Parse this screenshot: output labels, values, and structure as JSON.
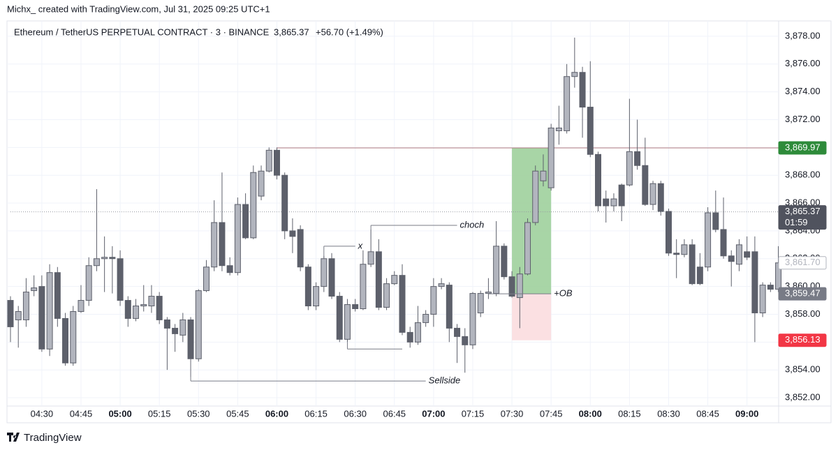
{
  "header": {
    "credit": "Michx_ created with TradingView.com, Jul 31, 2025 09:25 UTC+1"
  },
  "footer": {
    "brand": "TradingView"
  },
  "chart_data": {
    "type": "candlestick",
    "symbol": "Ethereum / TetherUS PERPETUAL CONTRACT · 3 · BINANCE",
    "last_price": "3,865.37",
    "change": "+56.70 (+1.49%)",
    "up_color": "#b2b5be",
    "down_color": "#5d606b",
    "wick_color": "#5d606b",
    "grid": true,
    "categories": [
      "04:18",
      "04:21",
      "04:24",
      "04:27",
      "04:30",
      "04:33",
      "04:36",
      "04:39",
      "04:42",
      "04:45",
      "04:48",
      "04:51",
      "04:54",
      "04:57",
      "05:00",
      "05:03",
      "05:06",
      "05:09",
      "05:12",
      "05:15",
      "05:18",
      "05:21",
      "05:24",
      "05:27",
      "05:30",
      "05:33",
      "05:36",
      "05:39",
      "05:42",
      "05:45",
      "05:48",
      "05:51",
      "05:54",
      "05:57",
      "06:00",
      "06:03",
      "06:06",
      "06:09",
      "06:12",
      "06:15",
      "06:18",
      "06:21",
      "06:24",
      "06:27",
      "06:30",
      "06:33",
      "06:36",
      "06:39",
      "06:42",
      "06:45",
      "06:48",
      "06:51",
      "06:54",
      "06:57",
      "07:00",
      "07:03",
      "07:06",
      "07:09",
      "07:12",
      "07:15",
      "07:18",
      "07:21",
      "07:24",
      "07:27",
      "07:30",
      "07:33",
      "07:36",
      "07:39",
      "07:42",
      "07:45",
      "07:48",
      "07:51",
      "07:54",
      "07:57",
      "08:00",
      "08:03",
      "08:06",
      "08:09",
      "08:12",
      "08:15",
      "08:18",
      "08:21",
      "08:24",
      "08:27",
      "08:30",
      "08:33",
      "08:36",
      "08:39",
      "08:42",
      "08:45",
      "08:48",
      "08:51",
      "08:54",
      "08:57",
      "09:00",
      "09:03",
      "09:06",
      "09:09",
      "09:12"
    ],
    "open": [
      3859.0,
      3857.6,
      3857.6,
      3859.7,
      3860.0,
      3855.5,
      3861.0,
      3857.7,
      3854.5,
      3858.2,
      3859.0,
      3861.5,
      3862.0,
      3862.1,
      3862.0,
      3859.0,
      3857.7,
      3858.6,
      3858.6,
      3859.3,
      3857.6,
      3857.0,
      3856.5,
      3857.6,
      3854.8,
      3859.7,
      3861.4,
      3864.6,
      3861.5,
      3861.0,
      3865.9,
      3863.5,
      3866.5,
      3868.3,
      3869.8,
      3868.0,
      3864.0,
      3864.1,
      3861.4,
      3858.6,
      3860.0,
      3862.0,
      3859.3,
      3856.2,
      3858.7,
      3858.4,
      3861.6,
      3862.5,
      3858.5,
      3860.2,
      3860.8,
      3856.7,
      3856.0,
      3857.4,
      3858.0,
      3860.0,
      3860.1,
      3857.0,
      3856.4,
      3855.8,
      3858.1,
      3859.5,
      3859.5,
      3862.9,
      3860.7,
      3859.2,
      3860.9,
      3864.6,
      3867.6,
      3867.1,
      3871.2,
      3871.2,
      3875.1,
      3875.4,
      3872.9,
      3869.5,
      3866.3,
      3865.8,
      3867.3,
      3867.3,
      3869.7,
      3868.7,
      3865.9,
      3867.4,
      3865.4,
      3862.4,
      3862.3,
      3863.0,
      3861.4,
      3861.4,
      3865.3,
      3864.1,
      3862.2,
      3861.6,
      3862.5,
      3862.5,
      3858.1,
      3860.1,
      3859.8
    ],
    "high": [
      3859.3,
      3858.6,
      3860.6,
      3860.8,
      3860.8,
      3861.6,
      3861.4,
      3858.1,
      3858.6,
      3860.1,
      3862.1,
      3867.0,
      3863.6,
      3862.9,
      3862.6,
      3859.3,
      3859.1,
      3860.1,
      3860.1,
      3859.6,
      3857.8,
      3857.3,
      3858.1,
      3857.8,
      3859.8,
      3861.9,
      3866.2,
      3868.2,
      3862.1,
      3866.4,
      3866.7,
      3868.7,
      3868.7,
      3870.0,
      3870.0,
      3868.2,
      3864.9,
      3864.4,
      3861.6,
      3860.3,
      3862.2,
      3862.4,
      3859.6,
      3859.1,
      3859.1,
      3862.6,
      3864.1,
      3863.4,
      3860.6,
      3861.1,
      3861.6,
      3857.1,
      3858.6,
      3858.3,
      3860.6,
      3860.6,
      3860.3,
      3857.3,
      3857.0,
      3859.6,
      3859.7,
      3860.6,
      3864.7,
      3863.1,
      3861.1,
      3861.4,
      3864.9,
      3868.7,
      3869.5,
      3871.7,
      3873.0,
      3876.0,
      3877.9,
      3875.8,
      3876.2,
      3869.7,
      3866.9,
      3866.7,
      3867.4,
      3873.5,
      3872.0,
      3870.7,
      3867.6,
      3867.6,
      3865.6,
      3863.4,
      3863.4,
      3863.4,
      3862.4,
      3865.7,
      3866.9,
      3866.4,
      3862.6,
      3863.4,
      3863.6,
      3863.6,
      3860.3,
      3860.3,
      3862.9
    ],
    "low": [
      3856.0,
      3855.6,
      3857.1,
      3859.3,
      3855.3,
      3855.0,
      3857.1,
      3854.3,
      3854.3,
      3858.1,
      3858.6,
      3861.1,
      3859.6,
      3859.5,
      3858.6,
      3857.1,
      3857.5,
      3858.2,
      3858.1,
      3857.3,
      3854.0,
      3855.3,
      3856.0,
      3853.5,
      3854.6,
      3859.6,
      3861.1,
      3861.1,
      3860.8,
      3860.8,
      3863.4,
      3863.4,
      3866.2,
      3868.2,
      3867.7,
      3863.4,
      3862.4,
      3861.1,
      3858.3,
      3858.3,
      3859.6,
      3859.1,
      3856.0,
      3856.0,
      3858.2,
      3858.3,
      3861.4,
      3858.3,
      3858.3,
      3860.1,
      3856.5,
      3855.6,
      3855.8,
      3857.1,
      3857.1,
      3859.8,
      3856.0,
      3854.5,
      3853.8,
      3855.5,
      3857.8,
      3859.1,
      3859.3,
      3860.5,
      3859.2,
      3857.0,
      3860.8,
      3864.4,
      3867.2,
      3866.9,
      3870.2,
      3871.0,
      3874.3,
      3870.7,
      3869.3,
      3865.4,
      3864.6,
      3865.4,
      3864.7,
      3867.2,
      3868.4,
      3865.8,
      3865.5,
      3865.1,
      3862.2,
      3860.6,
      3862.1,
      3860.1,
      3860.1,
      3861.1,
      3863.9,
      3862.0,
      3860.0,
      3861.1,
      3861.9,
      3856.0,
      3857.8,
      3859.6,
      3859.6
    ],
    "close": [
      3857.1,
      3858.2,
      3859.6,
      3859.9,
      3855.5,
      3861.0,
      3857.7,
      3854.5,
      3858.2,
      3859.0,
      3861.5,
      3862.0,
      3862.1,
      3862.0,
      3859.0,
      3857.7,
      3858.6,
      3858.7,
      3859.3,
      3857.6,
      3857.0,
      3856.6,
      3857.6,
      3854.8,
      3859.7,
      3861.4,
      3864.6,
      3861.5,
      3861.0,
      3865.9,
      3863.5,
      3868.2,
      3868.3,
      3869.8,
      3868.0,
      3864.0,
      3863.6,
      3861.4,
      3858.6,
      3860.0,
      3862.0,
      3859.3,
      3856.2,
      3858.7,
      3858.4,
      3861.6,
      3862.5,
      3858.5,
      3860.2,
      3860.8,
      3856.7,
      3856.0,
      3857.4,
      3858.0,
      3860.0,
      3860.2,
      3857.0,
      3856.4,
      3855.8,
      3859.5,
      3859.5,
      3859.6,
      3862.9,
      3860.7,
      3859.3,
      3860.9,
      3864.6,
      3868.3,
      3868.3,
      3871.4,
      3871.4,
      3875.1,
      3875.4,
      3872.9,
      3869.5,
      3865.8,
      3865.8,
      3866.3,
      3865.8,
      3869.7,
      3868.7,
      3865.9,
      3867.4,
      3865.4,
      3862.4,
      3862.3,
      3863.0,
      3860.2,
      3860.2,
      3865.3,
      3864.1,
      3862.2,
      3861.8,
      3863.0,
      3862.1,
      3858.1,
      3860.1,
      3859.8,
      3861.7
    ],
    "xticks": [
      "04:30",
      "04:45",
      "05:00",
      "05:15",
      "05:30",
      "05:45",
      "06:00",
      "06:15",
      "06:30",
      "06:45",
      "07:00",
      "07:15",
      "07:30",
      "07:45",
      "08:00",
      "08:15",
      "08:30",
      "08:45",
      "09:00"
    ],
    "ylim": [
      3851.4,
      3879.1
    ],
    "yticks": [
      {
        "value": 3852,
        "label": "3,852.00"
      },
      {
        "value": 3854,
        "label": "3,854.00"
      },
      {
        "value": 3856,
        "label": "3,856.00"
      },
      {
        "value": 3858,
        "label": "3,858.00"
      },
      {
        "value": 3860,
        "label": "3,860.00"
      },
      {
        "value": 3862,
        "label": "3,862.00"
      },
      {
        "value": 3864,
        "label": "3,864.00"
      },
      {
        "value": 3866,
        "label": "3,866.00"
      },
      {
        "value": 3868,
        "label": "3,868.00"
      },
      {
        "value": 3870,
        "label": "3,870.00"
      },
      {
        "value": 3872,
        "label": "3,872.00"
      },
      {
        "value": 3874,
        "label": "3,874.00"
      },
      {
        "value": 3876,
        "label": "3,876.00"
      },
      {
        "value": 3878,
        "label": "3,878.00"
      }
    ],
    "price_labels": [
      {
        "value": 3869.97,
        "label": "3,869.97",
        "color": "#2e8b3a",
        "text_color": "#ffffff"
      },
      {
        "value": 3865.37,
        "label": "3,865.37",
        "color": "#50535e",
        "text_color": "#ffffff",
        "countdown": "01:59"
      },
      {
        "value": 3861.7,
        "label": "3,861.70",
        "color": "#ffffff",
        "text_color": "#b2b5be"
      },
      {
        "value": 3859.47,
        "label": "3,859.47",
        "color": "#787b86",
        "text_color": "#ffffff"
      },
      {
        "value": 3856.13,
        "label": "3,856.13",
        "color": "#f23645",
        "text_color": "#ffffff"
      }
    ],
    "levels": [
      {
        "value": 3869.97,
        "from": "06:00",
        "color": "#b07a80",
        "dashed": false
      },
      {
        "value": 3865.37,
        "from": "04:18",
        "color": "#9598a1",
        "dashed": true
      }
    ],
    "position": {
      "entry": 3859.47,
      "target": 3869.97,
      "stop": 3856.13,
      "from": "07:30",
      "to": "07:45",
      "profit_color": "#9fd09c",
      "loss_color": "#fbe0e2"
    },
    "annotations": [
      {
        "label": "x",
        "value": 3862.9,
        "anchor": 3862.0,
        "from": "06:18",
        "to": "06:30"
      },
      {
        "label": "choch",
        "value": 3864.4,
        "anchor": 3863.4,
        "from": "06:36",
        "to": "07:09"
      },
      {
        "label": "Sellside",
        "value": 3853.2,
        "anchor": 3854.8,
        "from": "05:27",
        "to": "06:57"
      },
      {
        "label": null,
        "value": 3855.5,
        "anchor": 3856.0,
        "from": "06:27",
        "to": "06:48"
      },
      {
        "label": "+OB",
        "value": 3859.47,
        "anchor": 3859.47,
        "from": "07:21",
        "to": "07:45"
      }
    ]
  }
}
